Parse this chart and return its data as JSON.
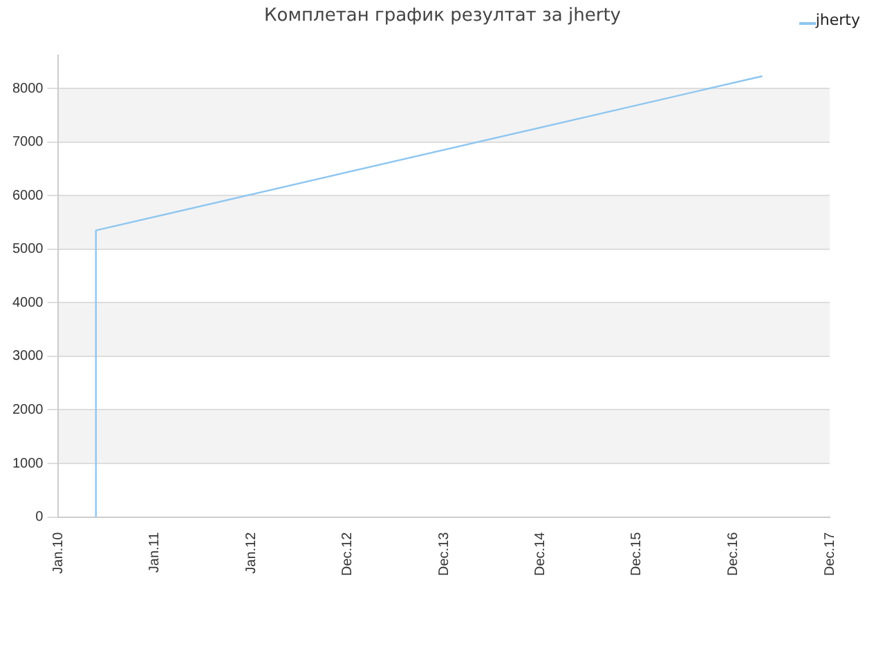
{
  "chart_data": {
    "type": "line",
    "title": "Комплетан график резултат за jherty",
    "x": [
      "2010-05-23",
      "2010-05-23",
      "2017-04-20"
    ],
    "series": [
      {
        "name": "jherty",
        "color": "#8ec6f0",
        "values": [
          0,
          5350,
          8230
        ]
      }
    ],
    "xlim": [
      "2010-01-01",
      "2017-12-31"
    ],
    "xticks": [
      {
        "value": "2010-01-01",
        "label": "Jan.10"
      },
      {
        "value": "2011-01-01",
        "label": "Jan.11"
      },
      {
        "value": "2012-01-01",
        "label": "Jan.12"
      },
      {
        "value": "2012-12-31",
        "label": "Dec.12"
      },
      {
        "value": "2013-12-31",
        "label": "Dec.13"
      },
      {
        "value": "2014-12-31",
        "label": "Dec.14"
      },
      {
        "value": "2015-12-31",
        "label": "Dec.15"
      },
      {
        "value": "2016-12-31",
        "label": "Dec.16"
      },
      {
        "value": "2017-12-31",
        "label": "Dec.17"
      }
    ],
    "ylim": [
      0,
      8620
    ],
    "yticks": [
      0,
      1000,
      2000,
      3000,
      4000,
      5000,
      6000,
      7000,
      8000
    ],
    "grid": "y",
    "legend": "top right",
    "marker": "none",
    "line_style": "solid"
  }
}
